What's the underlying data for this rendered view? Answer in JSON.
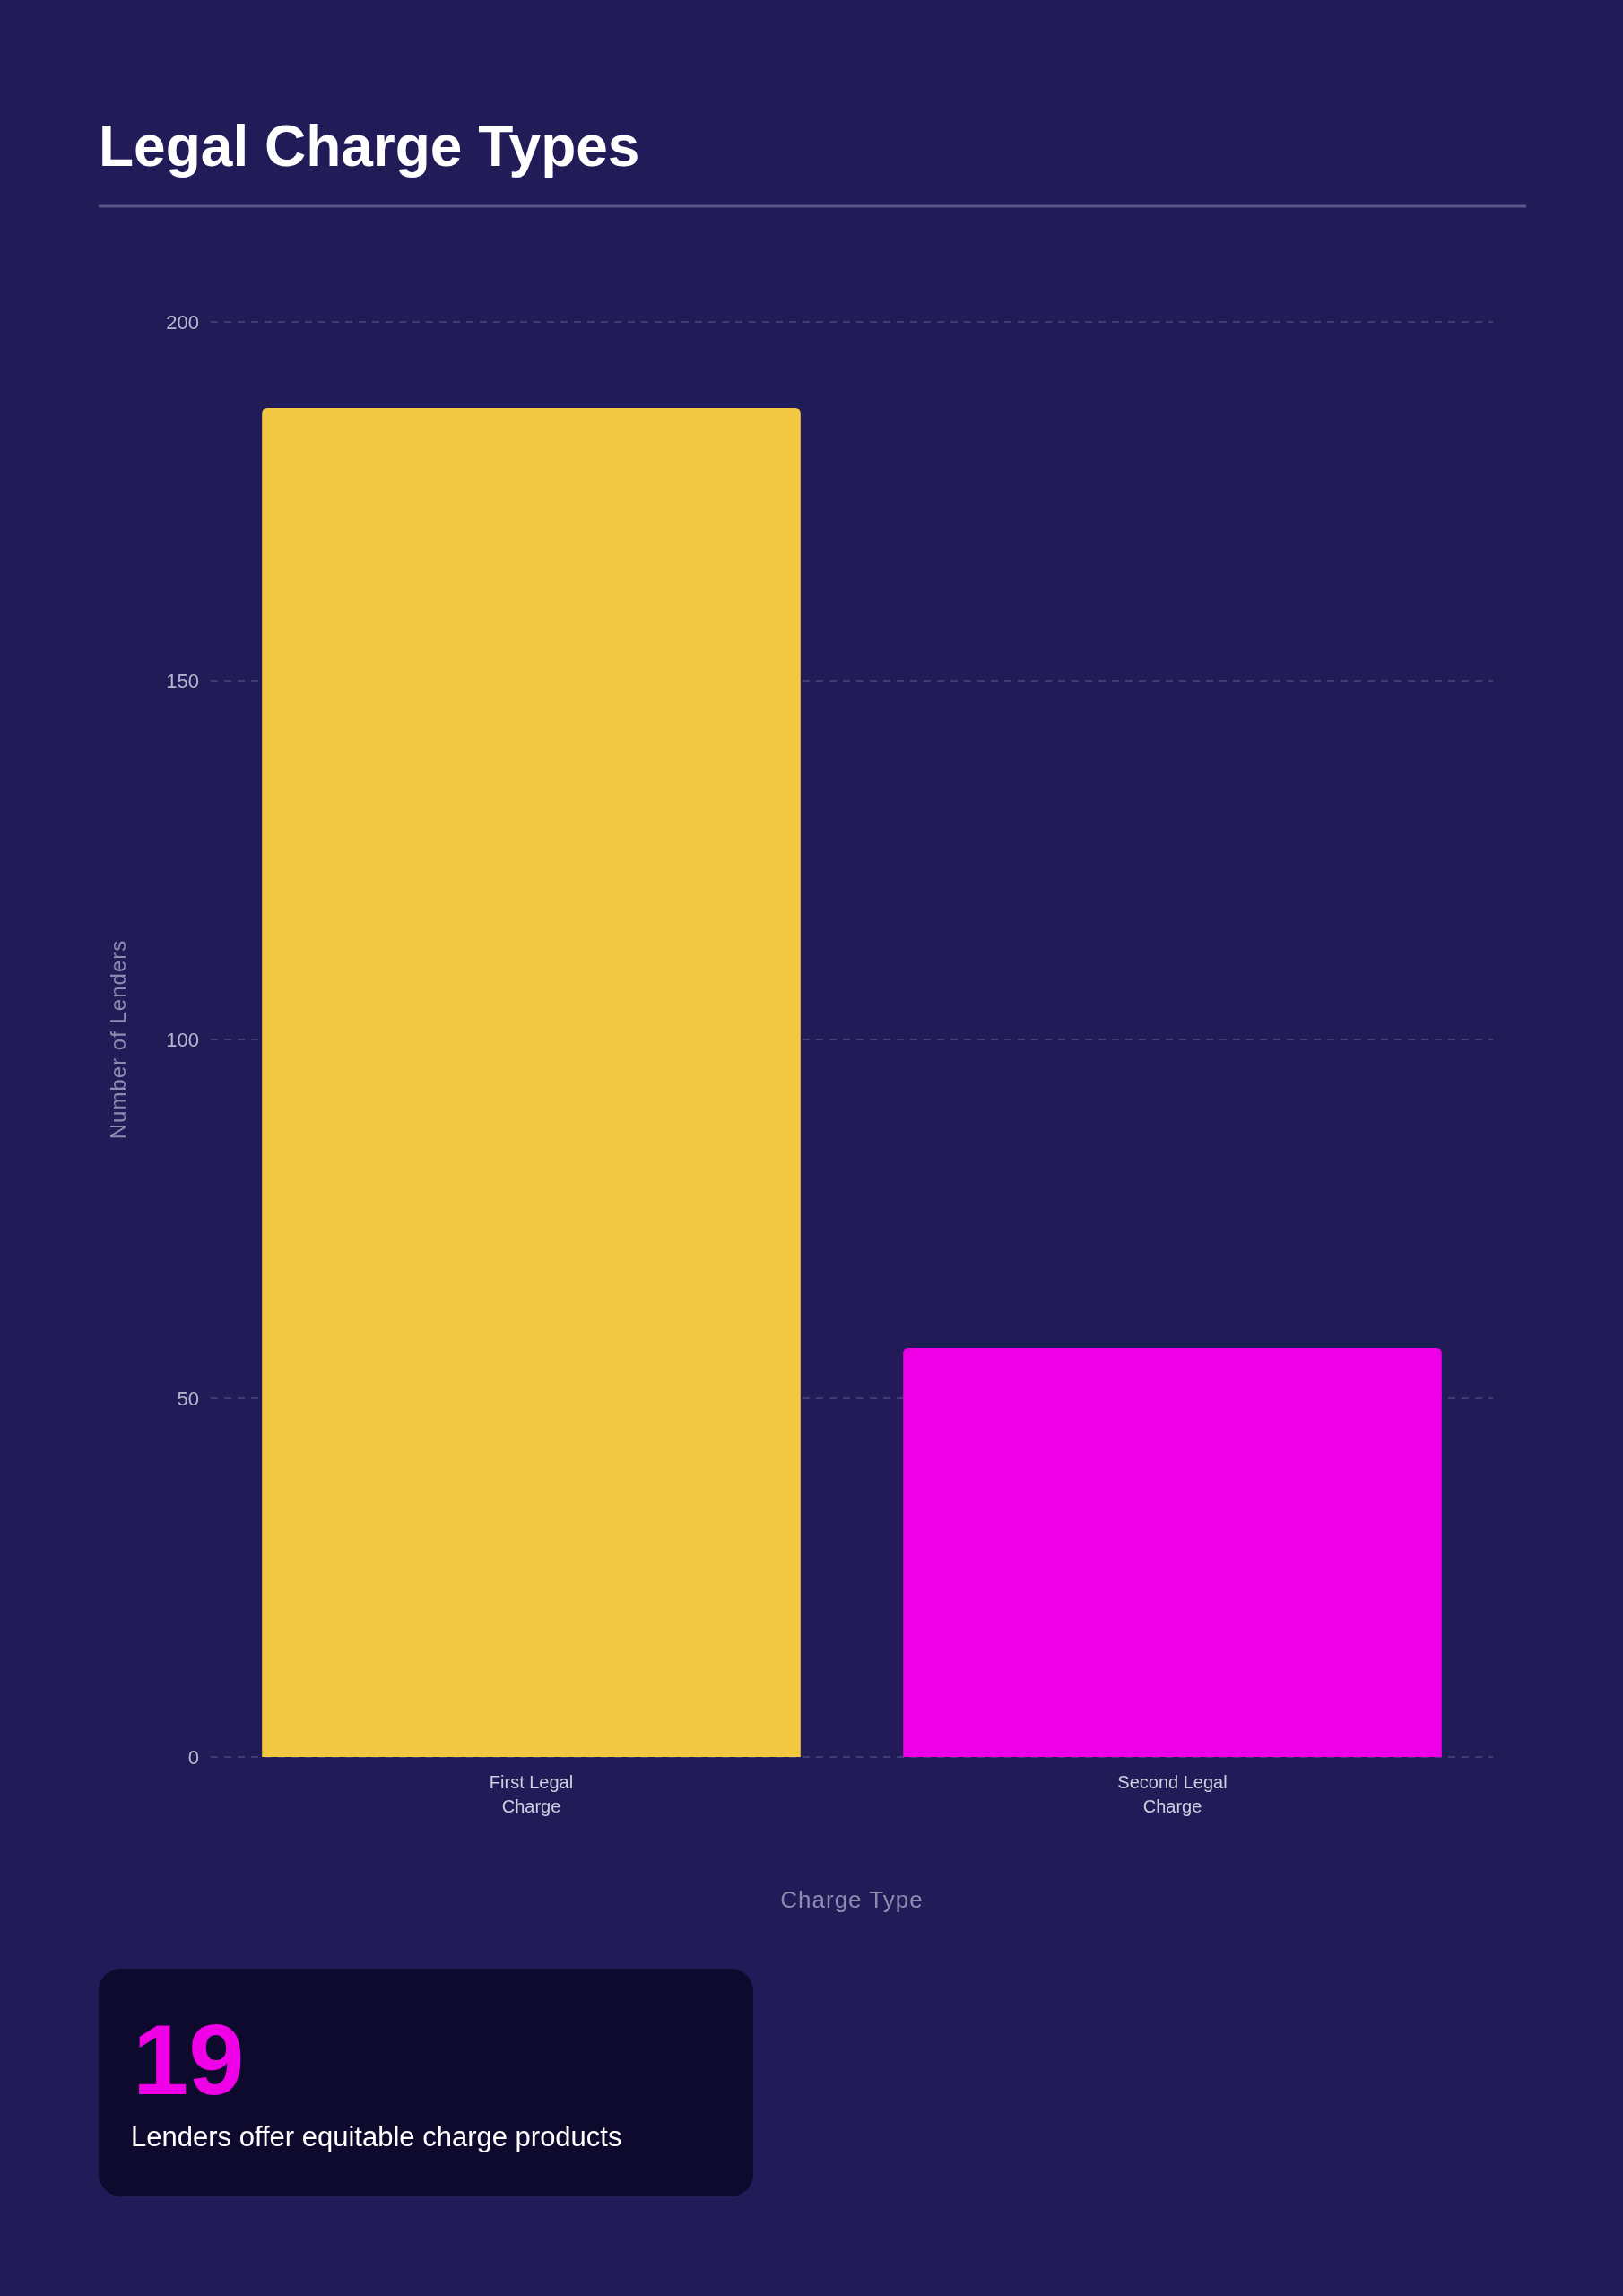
{
  "chart_data": [
    {
      "type": "bar",
      "title": "Legal Charge Types",
      "xlabel": "Charge Type",
      "ylabel": "Number of Lenders",
      "categories": [
        "First Legal Charge",
        "Second Legal Charge"
      ],
      "values": [
        188,
        57
      ],
      "colors": [
        "#f3c843",
        "#f000e6"
      ],
      "ylim": [
        0,
        200
      ],
      "yticks": [
        0,
        50,
        100,
        150,
        200
      ],
      "grid": "y"
    },
    {
      "type": "other",
      "title": "19",
      "subtitle": "Lenders offer equitable charge products"
    }
  ]
}
